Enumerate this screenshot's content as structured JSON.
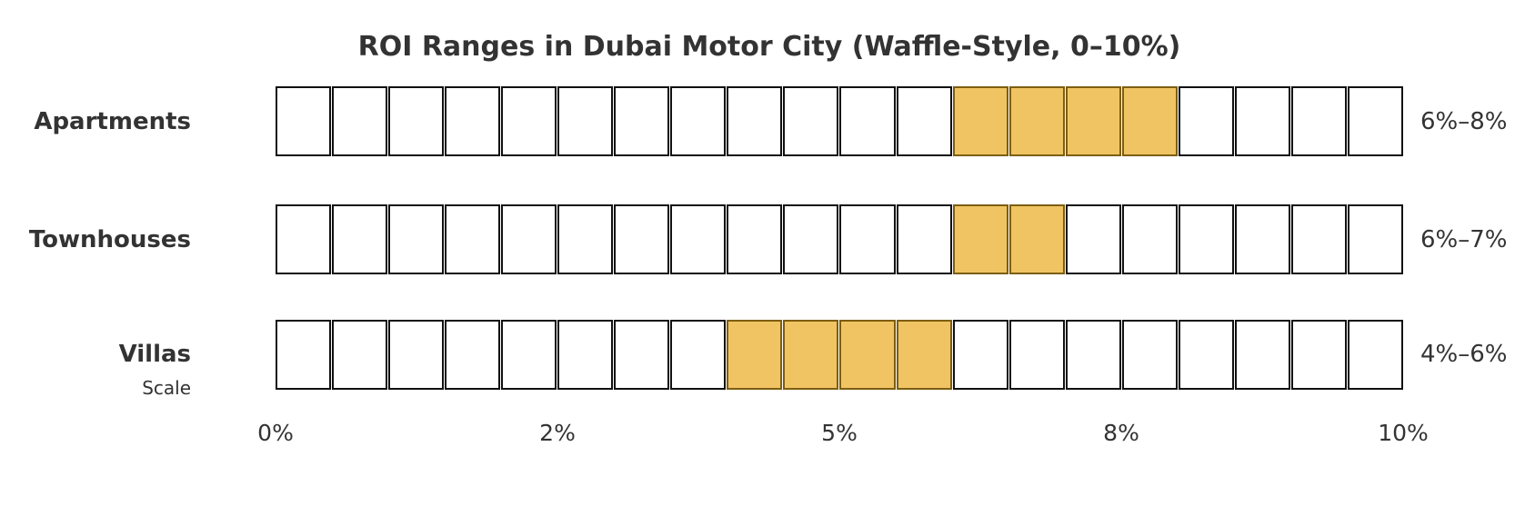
{
  "title": "ROI Ranges in Dubai Motor City (Waffle-Style, 0–10%)",
  "axis": {
    "label": "Scale",
    "tick_labels": [
      "0%",
      "2%",
      "5%",
      "8%",
      "10%"
    ],
    "tick_positions_pct": [
      0,
      2.5,
      5,
      7.5,
      10
    ]
  },
  "colors": {
    "filled_cell": "#F0C463",
    "filled_cell_border": "#7d5e10",
    "empty_cell": "#ffffff",
    "cell_border": "#111111",
    "text": "#333333"
  },
  "chart_data": {
    "type": "bar",
    "subtype": "waffle-range",
    "title": "ROI Ranges in Dubai Motor City (Waffle-Style, 0–10%)",
    "xlabel": "Scale",
    "xlim": [
      0,
      10
    ],
    "cells_per_row": 20,
    "pct_per_cell": 0.5,
    "grid": false,
    "legend": "none",
    "categories": [
      "Apartments",
      "Townhouses",
      "Villas"
    ],
    "ranges": [
      {
        "label": "Apartments",
        "min_pct": 6,
        "max_pct": 8,
        "range_label": "6%–8%"
      },
      {
        "label": "Townhouses",
        "min_pct": 6,
        "max_pct": 7,
        "range_label": "6%–7%"
      },
      {
        "label": "Villas",
        "min_pct": 4,
        "max_pct": 6,
        "range_label": "4%–6%"
      }
    ],
    "tick_labels": [
      "0%",
      "2%",
      "5%",
      "8%",
      "10%"
    ],
    "tick_positions_pct": [
      0,
      2.5,
      5,
      7.5,
      10
    ]
  }
}
